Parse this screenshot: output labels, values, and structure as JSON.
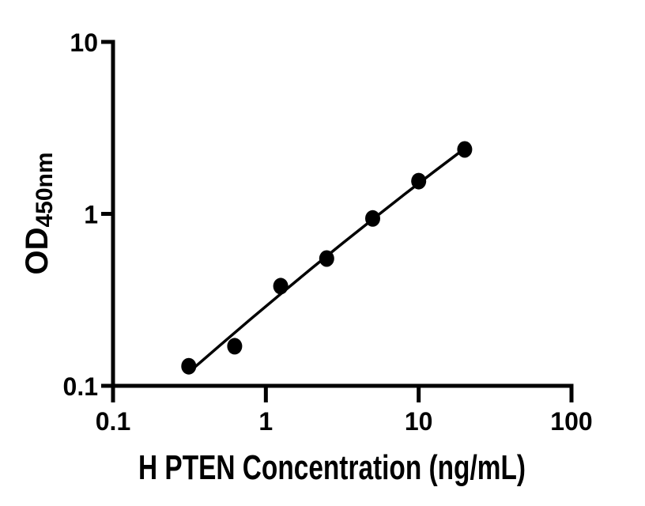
{
  "figure": {
    "background": "#ffffff"
  },
  "chart_data": {
    "type": "scatter",
    "subtype": "elisa-standard-curve",
    "title": "",
    "xlabel": "H PTEN Concentration (ng/mL)",
    "ylabel": "OD450nm",
    "ylabel_main": "OD",
    "ylabel_sub": "450nm",
    "x_scale": "log10",
    "y_scale": "log10",
    "xlim": [
      0.1,
      100
    ],
    "ylim": [
      0.1,
      10
    ],
    "x_ticks": {
      "values": [
        0.1,
        1,
        10,
        100
      ],
      "labels": [
        "0.1",
        "1",
        "10",
        "100"
      ]
    },
    "y_ticks": {
      "values": [
        0.1,
        1,
        10
      ],
      "labels": [
        "0.1",
        "1",
        "10"
      ]
    },
    "grid": false,
    "legend": null,
    "marker": {
      "shape": "filled-circle",
      "color": "#000000"
    },
    "points": {
      "x": [
        0.313,
        0.625,
        1.25,
        2.5,
        5,
        10,
        20
      ],
      "y": [
        0.13,
        0.17,
        0.38,
        0.55,
        0.94,
        1.55,
        2.37
      ]
    },
    "fit_line": {
      "x": [
        0.324,
        0.501,
        0.794,
        1.259,
        1.995,
        3.162,
        5.012,
        7.943,
        12.589,
        20.0
      ],
      "y": [
        0.123,
        0.172,
        0.244,
        0.344,
        0.482,
        0.672,
        0.931,
        1.284,
        1.759,
        2.399
      ]
    },
    "colors": {
      "foreground": "#000000",
      "background": "#ffffff"
    }
  }
}
